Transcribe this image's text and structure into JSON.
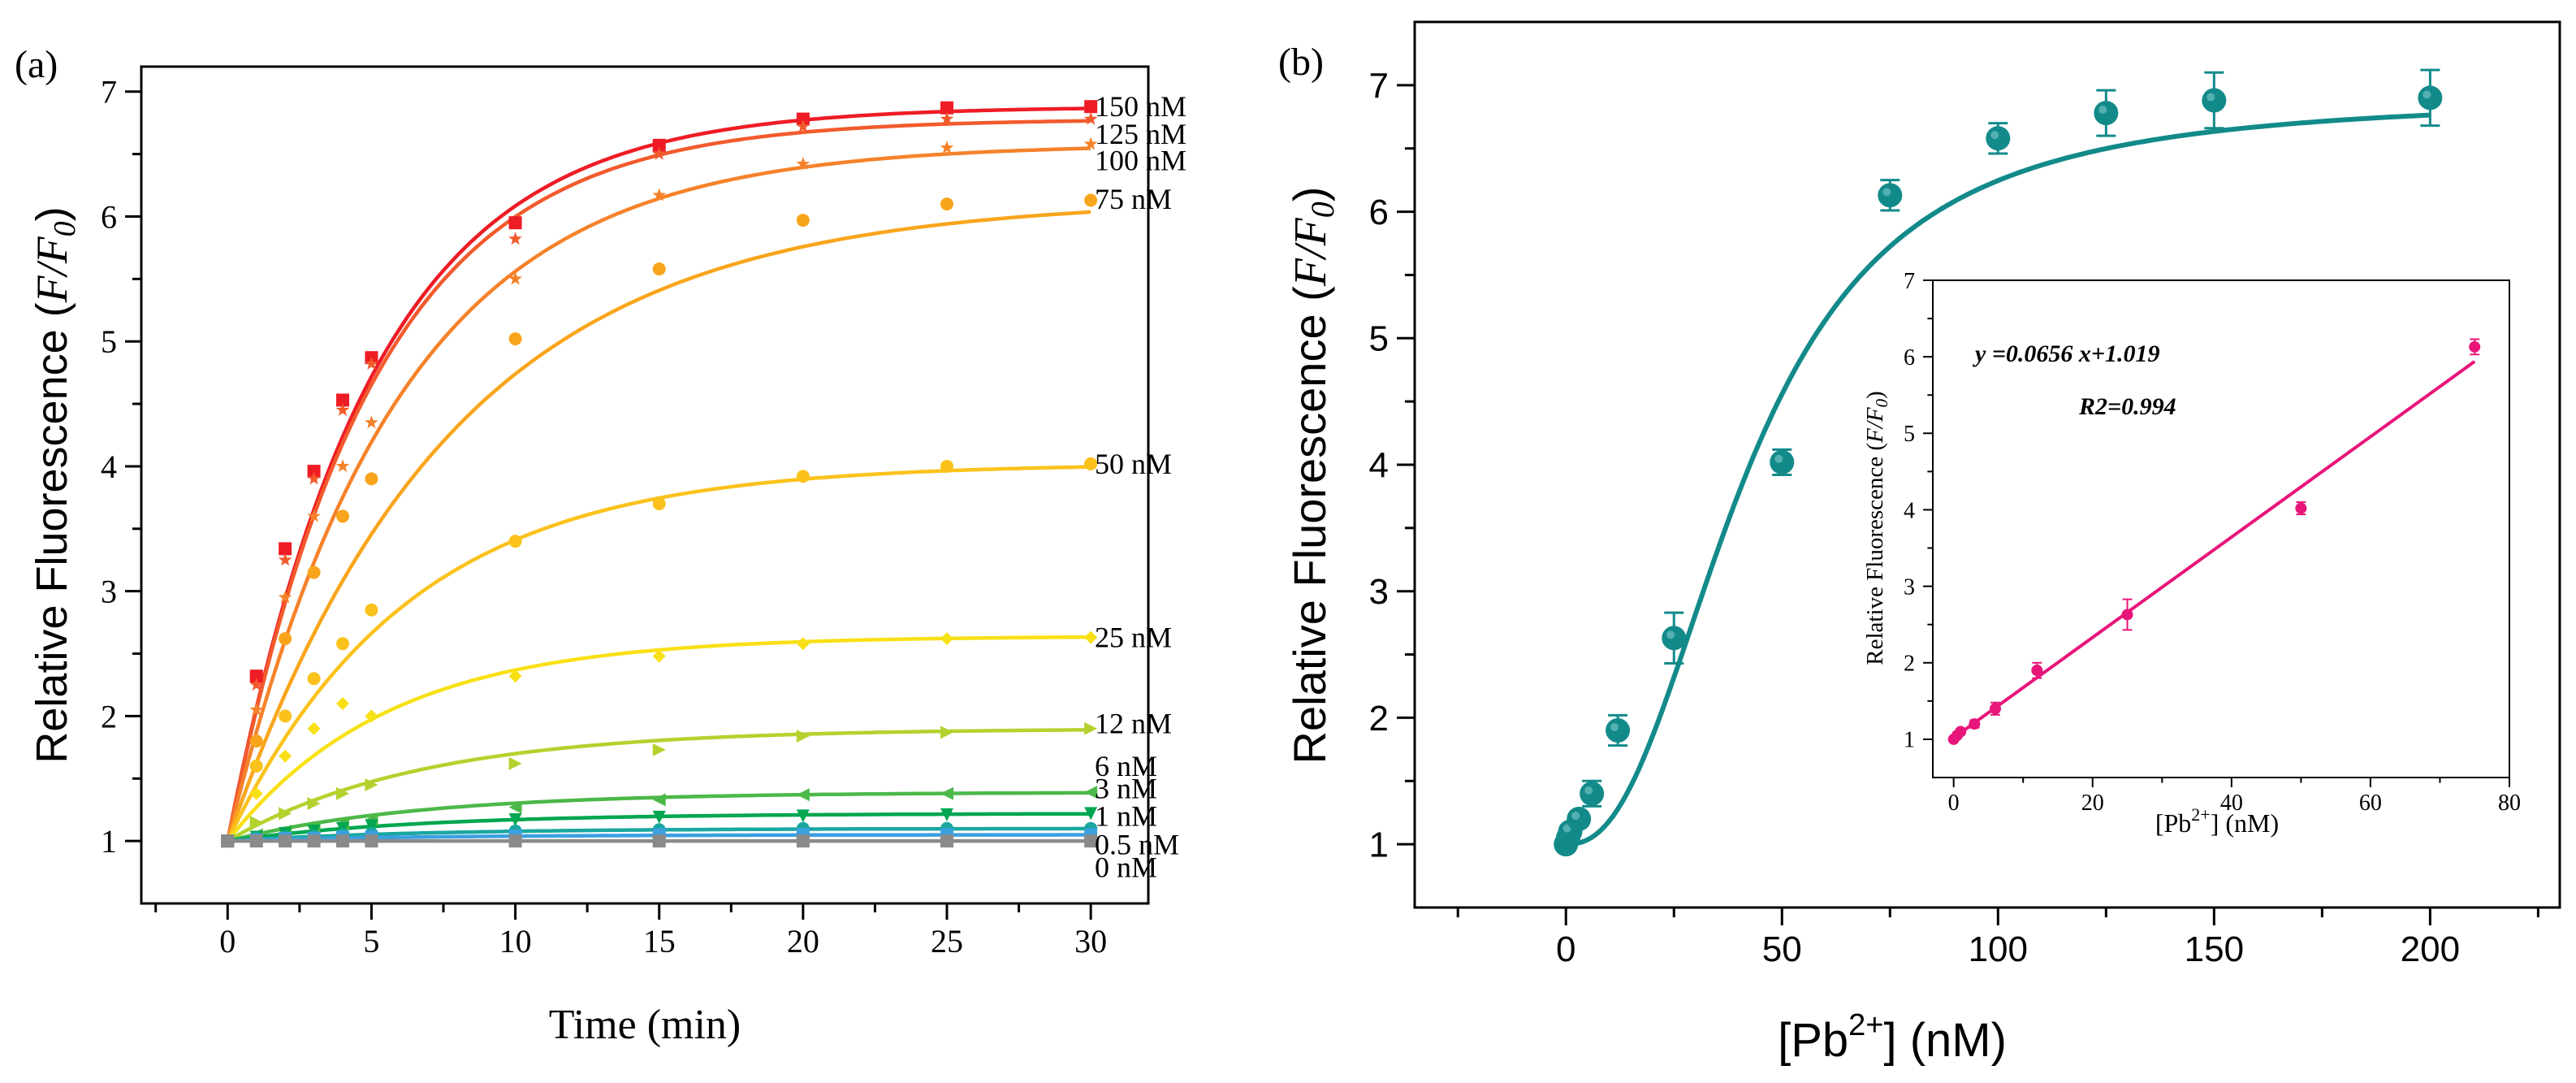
{
  "chart_data": [
    {
      "type": "line",
      "panel_label": "(a)",
      "title": "",
      "xlabel": "Time (min)",
      "ylabel": "Relative Fluorescence (F/F0)",
      "xlim": [
        -3,
        32
      ],
      "ylim": [
        0.5,
        7.2
      ],
      "xticks": [
        "0",
        "5",
        "10",
        "15",
        "20",
        "25",
        "30"
      ],
      "yticks": [
        "1",
        "2",
        "3",
        "4",
        "5",
        "6",
        "7"
      ],
      "x": [
        0,
        1,
        2,
        3,
        4,
        5,
        10,
        15,
        20,
        25,
        30
      ],
      "series": [
        {
          "name": "150 nM",
          "color": "#ee1c25",
          "marker": "square",
          "plateau": 6.88,
          "k": 0.2,
          "values": [
            1.0,
            2.32,
            3.34,
            3.96,
            4.53,
            4.87,
            5.95,
            6.57,
            6.78,
            6.87,
            6.88
          ]
        },
        {
          "name": "125 nM",
          "color": "#f25a2c",
          "marker": "star",
          "plateau": 6.78,
          "k": 0.2,
          "values": [
            1.0,
            2.25,
            3.25,
            3.9,
            4.45,
            4.82,
            5.82,
            6.5,
            6.72,
            6.78,
            6.78
          ]
        },
        {
          "name": "100 nM",
          "color": "#f5822a",
          "marker": "star",
          "plateau": 6.58,
          "k": 0.17,
          "values": [
            1.0,
            2.05,
            2.95,
            3.6,
            4.0,
            4.35,
            5.5,
            6.17,
            6.42,
            6.55,
            6.58
          ]
        },
        {
          "name": "75 nM",
          "color": "#f9a51c",
          "marker": "circle",
          "plateau": 6.14,
          "k": 0.13,
          "values": [
            1.0,
            1.8,
            2.62,
            3.15,
            3.6,
            3.9,
            5.02,
            5.58,
            5.97,
            6.1,
            6.13
          ]
        },
        {
          "name": "50 nM",
          "color": "#fbc21c",
          "marker": "circle",
          "plateau": 4.02,
          "k": 0.16,
          "values": [
            1.0,
            1.6,
            2.0,
            2.3,
            2.58,
            2.85,
            3.4,
            3.7,
            3.92,
            4.0,
            4.02
          ]
        },
        {
          "name": "25 nM",
          "color": "#f8e016",
          "marker": "diamond",
          "plateau": 2.64,
          "k": 0.18,
          "values": [
            1.0,
            1.38,
            1.68,
            1.9,
            2.1,
            2.0,
            2.32,
            2.48,
            2.58,
            2.62,
            2.63
          ]
        },
        {
          "name": "12 nM",
          "color": "#b4d22e",
          "marker": "tri-right",
          "plateau": 1.9,
          "k": 0.15,
          "values": [
            1.0,
            1.15,
            1.22,
            1.3,
            1.38,
            1.45,
            1.62,
            1.73,
            1.84,
            1.87,
            1.9
          ]
        },
        {
          "name": "6 nM",
          "color": "#4cb848",
          "marker": "tri-left",
          "plateau": 1.39,
          "k": 0.15,
          "values": [
            1.0,
            1.05,
            1.08,
            1.11,
            1.14,
            1.17,
            1.27,
            1.33,
            1.37,
            1.38,
            1.39
          ]
        },
        {
          "name": "3 nM",
          "color": "#00a650",
          "marker": "tri-down",
          "plateau": 1.22,
          "k": 0.15,
          "values": [
            1.0,
            1.03,
            1.06,
            1.08,
            1.1,
            1.12,
            1.17,
            1.19,
            1.2,
            1.21,
            1.22
          ]
        },
        {
          "name": "1 nM",
          "color": "#1aa7a0",
          "marker": "circle",
          "plateau": 1.1,
          "k": 0.15,
          "values": [
            1.0,
            1.02,
            1.03,
            1.04,
            1.05,
            1.06,
            1.08,
            1.09,
            1.1,
            1.1,
            1.1
          ]
        },
        {
          "name": "0.5 nM",
          "color": "#3ba0e0",
          "marker": "square",
          "plateau": 1.05,
          "k": 0.15,
          "values": [
            1.0,
            1.01,
            1.02,
            1.02,
            1.03,
            1.03,
            1.04,
            1.05,
            1.05,
            1.05,
            1.05
          ]
        },
        {
          "name": "0 nM",
          "color": "#8a8a8a",
          "marker": "square",
          "plateau": 1.0,
          "k": 0.15,
          "values": [
            1.0,
            1.0,
            1.0,
            1.0,
            1.0,
            1.0,
            1.0,
            1.0,
            1.0,
            1.0,
            1.0
          ]
        }
      ],
      "legend_labels_y": [
        6.88,
        6.66,
        6.45,
        6.14,
        4.02,
        2.63,
        1.94,
        1.6,
        1.42,
        1.2,
        0.97,
        0.79
      ]
    },
    {
      "type": "scatter",
      "panel_label": "(b)",
      "title": "",
      "xlabel": "[Pb2+] (nM)",
      "ylabel": "Relative Fluorescence (F/F0)",
      "xlim": [
        -35,
        230
      ],
      "ylim": [
        0.5,
        7.5
      ],
      "xticks": [
        "0",
        "50",
        "100",
        "150",
        "200"
      ],
      "yticks": [
        "1",
        "2",
        "3",
        "4",
        "5",
        "6",
        "7"
      ],
      "color": "#138a8a",
      "x": [
        0,
        0.5,
        1,
        3,
        6,
        12,
        25,
        50,
        75,
        100,
        125,
        150,
        200
      ],
      "values": [
        1.0,
        1.05,
        1.1,
        1.2,
        1.4,
        1.9,
        2.63,
        4.02,
        6.13,
        6.58,
        6.78,
        6.88,
        6.9
      ],
      "errors": [
        0.02,
        0.02,
        0.03,
        0.05,
        0.1,
        0.12,
        0.2,
        0.1,
        0.12,
        0.12,
        0.18,
        0.22,
        0.22
      ],
      "fit": {
        "type": "sigmoid",
        "top": 6.9,
        "bottom": 1.0,
        "x0": 42,
        "n": 2.4
      },
      "inset": {
        "type": "scatter",
        "xlabel": "[Pb2+] (nM)",
        "ylabel": "Relative Fluorescence (F/F0)",
        "xlim": [
          -3,
          80
        ],
        "ylim": [
          0.5,
          7
        ],
        "xticks": [
          "0",
          "20",
          "40",
          "60",
          "80"
        ],
        "yticks": [
          "1",
          "2",
          "3",
          "4",
          "5",
          "6",
          "7"
        ],
        "color": "#e8157a",
        "x": [
          0,
          0.5,
          1,
          3,
          6,
          12,
          25,
          50,
          75
        ],
        "values": [
          1.0,
          1.05,
          1.1,
          1.2,
          1.4,
          1.9,
          2.63,
          4.02,
          6.13
        ],
        "errors": [
          0.02,
          0.02,
          0.03,
          0.05,
          0.08,
          0.1,
          0.2,
          0.08,
          0.1
        ],
        "fit": {
          "slope": 0.0656,
          "intercept": 1.019,
          "x_range": [
            0,
            75
          ]
        },
        "equation": "y =0.0656 x+1.019",
        "r2": "R2=0.994"
      }
    }
  ]
}
